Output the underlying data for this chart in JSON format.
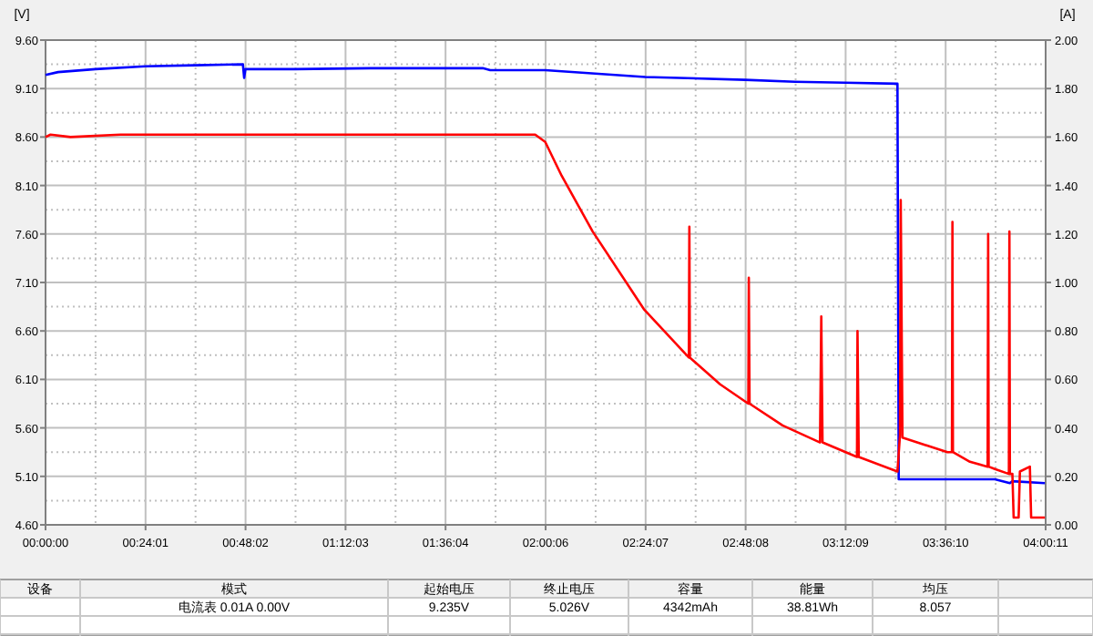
{
  "chart_data": {
    "type": "line",
    "ylabel": "[V]",
    "y2label": "[A]",
    "xlim": [
      0,
      4.00306
    ],
    "xticks": [
      {
        "value": 0,
        "label": "00:00:00"
      },
      {
        "value": 0.40028,
        "label": "00:24:01"
      },
      {
        "value": 0.80056,
        "label": "00:48:02"
      },
      {
        "value": 1.20083,
        "label": "01:12:03"
      },
      {
        "value": 1.60111,
        "label": "01:36:04"
      },
      {
        "value": 2.00167,
        "label": "02:00:06"
      },
      {
        "value": 2.40194,
        "label": "02:24:07"
      },
      {
        "value": 2.80222,
        "label": "02:48:08"
      },
      {
        "value": 3.2025,
        "label": "03:12:09"
      },
      {
        "value": 3.60278,
        "label": "03:36:10"
      },
      {
        "value": 4.00306,
        "label": "04:00:11"
      }
    ],
    "ylim": [
      4.6,
      9.6
    ],
    "yticks": [
      {
        "value": 4.6,
        "label": "4.60"
      },
      {
        "value": 5.1,
        "label": "5.10"
      },
      {
        "value": 5.6,
        "label": "5.60"
      },
      {
        "value": 6.1,
        "label": "6.10"
      },
      {
        "value": 6.6,
        "label": "6.60"
      },
      {
        "value": 7.1,
        "label": "7.10"
      },
      {
        "value": 7.6,
        "label": "7.60"
      },
      {
        "value": 8.1,
        "label": "8.10"
      },
      {
        "value": 8.6,
        "label": "8.60"
      },
      {
        "value": 9.1,
        "label": "9.10"
      },
      {
        "value": 9.6,
        "label": "9.60"
      }
    ],
    "y2lim": [
      0,
      2
    ],
    "y2ticks": [
      {
        "value": 0,
        "label": "0.00"
      },
      {
        "value": 0.2,
        "label": "0.20"
      },
      {
        "value": 0.4,
        "label": "0.40"
      },
      {
        "value": 0.6,
        "label": "0.60"
      },
      {
        "value": 0.8,
        "label": "0.80"
      },
      {
        "value": 1.0,
        "label": "1.00"
      },
      {
        "value": 1.2,
        "label": "1.20"
      },
      {
        "value": 1.4,
        "label": "1.40"
      },
      {
        "value": 1.6,
        "label": "1.60"
      },
      {
        "value": 1.8,
        "label": "1.80"
      },
      {
        "value": 2.0,
        "label": "2.00"
      }
    ],
    "grid": true,
    "series": [
      {
        "color": "#0000ff",
        "x": [
          0,
          0.05,
          0.2,
          0.4,
          0.6,
          0.79,
          0.795,
          0.8,
          1.0,
          1.3,
          1.75,
          1.78,
          2.0,
          2.4,
          2.8,
          3.0,
          3.2,
          3.41,
          3.415,
          3.8,
          3.86,
          3.87,
          4.0
        ],
        "values": [
          9.24,
          9.27,
          9.3,
          9.33,
          9.34,
          9.35,
          9.21,
          9.3,
          9.3,
          9.31,
          9.31,
          9.29,
          9.29,
          9.22,
          9.19,
          9.17,
          9.16,
          9.15,
          5.07,
          5.07,
          5.03,
          5.05,
          5.03
        ]
      },
      {
        "color": "#ff0000",
        "axis": "y2",
        "x": [
          0,
          0.02,
          0.1,
          0.3,
          1.0,
          1.96,
          2.0,
          2.066,
          2.19,
          2.395,
          2.575,
          2.577,
          2.579,
          2.7,
          2.813,
          2.815,
          2.818,
          2.95,
          3.1,
          3.105,
          3.11,
          3.248,
          3.25,
          3.255,
          3.41,
          3.42,
          3.423,
          3.43,
          3.61,
          3.628,
          3.63,
          3.632,
          3.7,
          3.771,
          3.773,
          3.775,
          3.8,
          3.856,
          3.858,
          3.86,
          3.87,
          3.875,
          3.895,
          3.9,
          3.94,
          3.945,
          4.0
        ],
        "values": [
          1.6,
          1.61,
          1.6,
          1.61,
          1.61,
          1.61,
          1.58,
          1.44,
          1.21,
          0.89,
          0.69,
          1.23,
          0.69,
          0.58,
          0.5,
          1.02,
          0.5,
          0.41,
          0.34,
          0.86,
          0.34,
          0.28,
          0.8,
          0.28,
          0.22,
          0.37,
          1.34,
          0.36,
          0.3,
          0.3,
          1.25,
          0.3,
          0.26,
          0.24,
          1.2,
          0.24,
          0.23,
          0.21,
          1.21,
          0.21,
          0.21,
          0.03,
          0.03,
          0.22,
          0.24,
          0.03,
          0.03
        ]
      }
    ],
    "annotations": [
      "设备",
      "模式",
      "起始电压",
      "终止电压",
      "容量",
      "能量",
      "均压",
      "电流表  0.01A  0.00V",
      "9.235V",
      "5.026V",
      "4342mAh",
      "38.81Wh",
      "8.057"
    ]
  }
}
